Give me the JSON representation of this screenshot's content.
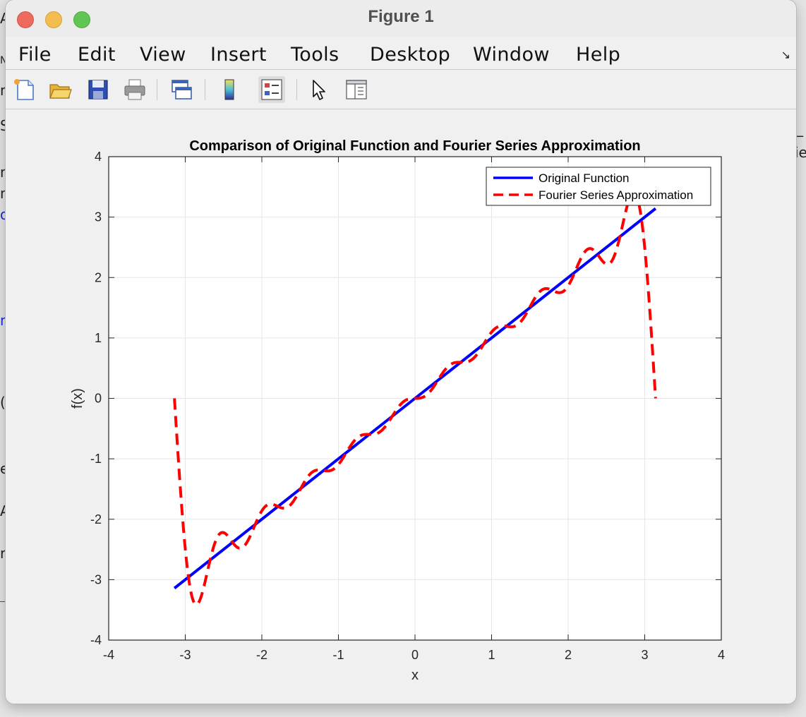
{
  "window": {
    "title": "Figure 1"
  },
  "menubar": {
    "items": [
      {
        "id": "file",
        "label": "File"
      },
      {
        "id": "edit",
        "label": "Edit"
      },
      {
        "id": "view",
        "label": "View"
      },
      {
        "id": "insert",
        "label": "Insert"
      },
      {
        "id": "tools",
        "label": "Tools"
      },
      {
        "id": "desktop",
        "label": "Desktop"
      },
      {
        "id": "window",
        "label": "Window"
      },
      {
        "id": "help",
        "label": "Help"
      }
    ]
  },
  "toolbar": {
    "buttons": [
      {
        "name": "new-figure-icon"
      },
      {
        "name": "open-file-icon"
      },
      {
        "name": "save-figure-icon"
      },
      {
        "name": "print-figure-icon"
      },
      {
        "name": "link-plot-icon"
      },
      {
        "name": "insert-colorbar-icon"
      },
      {
        "name": "insert-legend-icon",
        "pressed": true
      },
      {
        "name": "edit-plot-icon"
      },
      {
        "name": "property-inspector-icon"
      }
    ]
  },
  "colors": {
    "original": "#0000ff",
    "approx": "#ff0000",
    "grid": "#e6e6e6"
  },
  "chart_data": {
    "type": "line",
    "title": "Comparison of Original Function and Fourier Series Approximation",
    "xlabel": "x",
    "ylabel": "f(x)",
    "xlim": [
      -4,
      4
    ],
    "ylim": [
      -4,
      4
    ],
    "xticks": [
      -4,
      -3,
      -2,
      -1,
      0,
      1,
      2,
      3,
      4
    ],
    "yticks": [
      -4,
      -3,
      -2,
      -1,
      0,
      1,
      2,
      3,
      4
    ],
    "grid": true,
    "legend_position": "top-right",
    "series": [
      {
        "name": "Original Function",
        "style": "solid",
        "x": [
          -3.1416,
          3.1416
        ],
        "y": [
          -3.1416,
          3.1416
        ]
      },
      {
        "name": "Fourier Series Approximation",
        "style": "dashed",
        "function": "2*sum_{n=1..10} (-1)^(n+1) sin(n x)/n",
        "x_range": [
          -3.1416,
          3.1416
        ],
        "x": [
          -3.14,
          -3.0,
          -2.85,
          -2.7,
          -2.55,
          -2.4,
          -2.25,
          -2.1,
          -1.9,
          -1.7,
          -1.5,
          -1.3,
          -1.1,
          -0.9,
          -0.6,
          -0.3,
          0.0,
          0.3,
          0.6,
          0.9,
          1.1,
          1.3,
          1.5,
          1.7,
          1.9,
          2.1,
          2.3,
          2.5,
          2.7,
          2.85,
          3.0,
          3.14
        ],
        "y": [
          0.0,
          -2.95,
          -3.42,
          -2.7,
          -2.25,
          -2.42,
          -2.38,
          -2.05,
          -1.75,
          -1.78,
          -1.48,
          -1.2,
          -1.15,
          -0.9,
          -0.62,
          -0.3,
          0.0,
          0.3,
          0.62,
          0.9,
          1.15,
          1.2,
          1.48,
          1.78,
          1.75,
          2.05,
          2.42,
          2.25,
          2.7,
          3.42,
          2.95,
          0.0
        ]
      }
    ]
  }
}
